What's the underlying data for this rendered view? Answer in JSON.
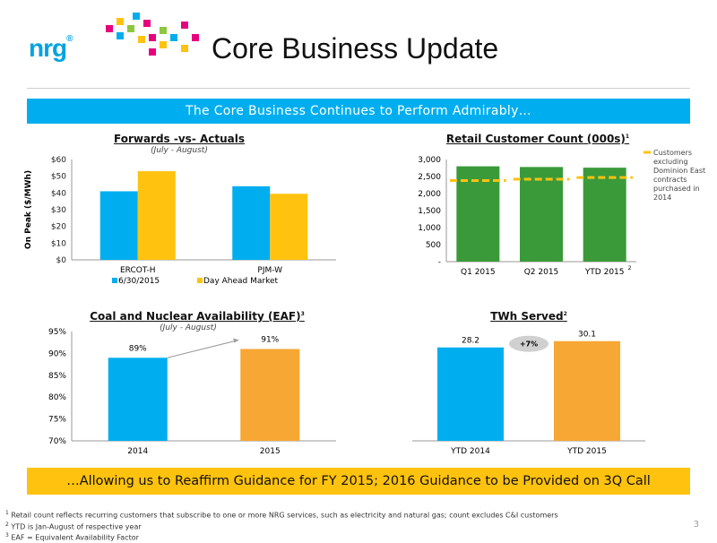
{
  "header": {
    "logo_text": "nrg",
    "title": "Core Business Update"
  },
  "banner_top": "The Core Business Continues to Perform Admirably…",
  "banner_bottom": "…Allowing us to Reaffirm Guidance for FY 2015; 2016 Guidance to be Provided on 3Q Call",
  "footnotes": [
    {
      "num": "1",
      "text": "Retail count reflects recurring customers that subscribe to one or more NRG services, such as electricity and natural gas; count excludes C&I customers"
    },
    {
      "num": "2",
      "text": "YTD is Jan-August of respective year"
    },
    {
      "num": "3",
      "text": "EAF = Equivalent Availability Factor"
    }
  ],
  "page_number": "3",
  "colors": {
    "blue": "#00aeef",
    "yellow": "#ffc20e",
    "green": "#3a9a3a",
    "orange": "#f7a733",
    "grey_bubble": "#d0d0d0"
  },
  "chart_data": [
    {
      "id": "forwards",
      "type": "bar",
      "title": "Forwards -vs- Actuals",
      "subtitle": "(July - August)",
      "ylabel": "On Peak ($/MWh)",
      "ylim": [
        0,
        60
      ],
      "yticks": [
        "$0",
        "$10",
        "$20",
        "$30",
        "$40",
        "$50",
        "$60"
      ],
      "categories": [
        "ERCOT-H",
        "PJM-W"
      ],
      "series": [
        {
          "name": "6/30/2015",
          "values": [
            41,
            44
          ],
          "color": "#00aeef"
        },
        {
          "name": "Day Ahead Market",
          "values": [
            53,
            39.5
          ],
          "color": "#ffc20e"
        }
      ],
      "legend": "bottom"
    },
    {
      "id": "retail",
      "type": "bar",
      "title": "Retail Customer Count (000s)",
      "title_sup": "1",
      "ylim": [
        0,
        3000
      ],
      "yticks": [
        "-",
        "500",
        "1,000",
        "1,500",
        "2,000",
        "2,500",
        "3,000"
      ],
      "categories": [
        "Q1 2015",
        "Q2 2015",
        "YTD 2015"
      ],
      "category_sups": [
        "",
        "",
        "2"
      ],
      "values": [
        2800,
        2780,
        2760
      ],
      "color": "#3a9a3a",
      "overlay_series": {
        "name": "Customers excluding Dominion East contracts purchased in 2014",
        "values": [
          2380,
          2420,
          2470
        ],
        "color": "#ffc20e"
      },
      "legend": "right"
    },
    {
      "id": "eaf",
      "type": "bar",
      "title": "Coal and Nuclear Availability (EAF)",
      "title_sup": "3",
      "subtitle": "(July - August)",
      "ylim": [
        70,
        95
      ],
      "yticks": [
        "70%",
        "75%",
        "80%",
        "85%",
        "90%",
        "95%"
      ],
      "categories": [
        "2014",
        "2015"
      ],
      "values": [
        89,
        91
      ],
      "labels": [
        "89%",
        "91%"
      ],
      "colors": [
        "#00aeef",
        "#f7a733"
      ]
    },
    {
      "id": "twh",
      "type": "bar",
      "title": "TWh Served",
      "title_sup": "2",
      "categories": [
        "YTD 2014",
        "YTD 2015"
      ],
      "values": [
        28.2,
        30.1
      ],
      "labels": [
        "28.2",
        "30.1"
      ],
      "colors": [
        "#00aeef",
        "#f7a733"
      ],
      "growth_label": "+7%"
    }
  ]
}
